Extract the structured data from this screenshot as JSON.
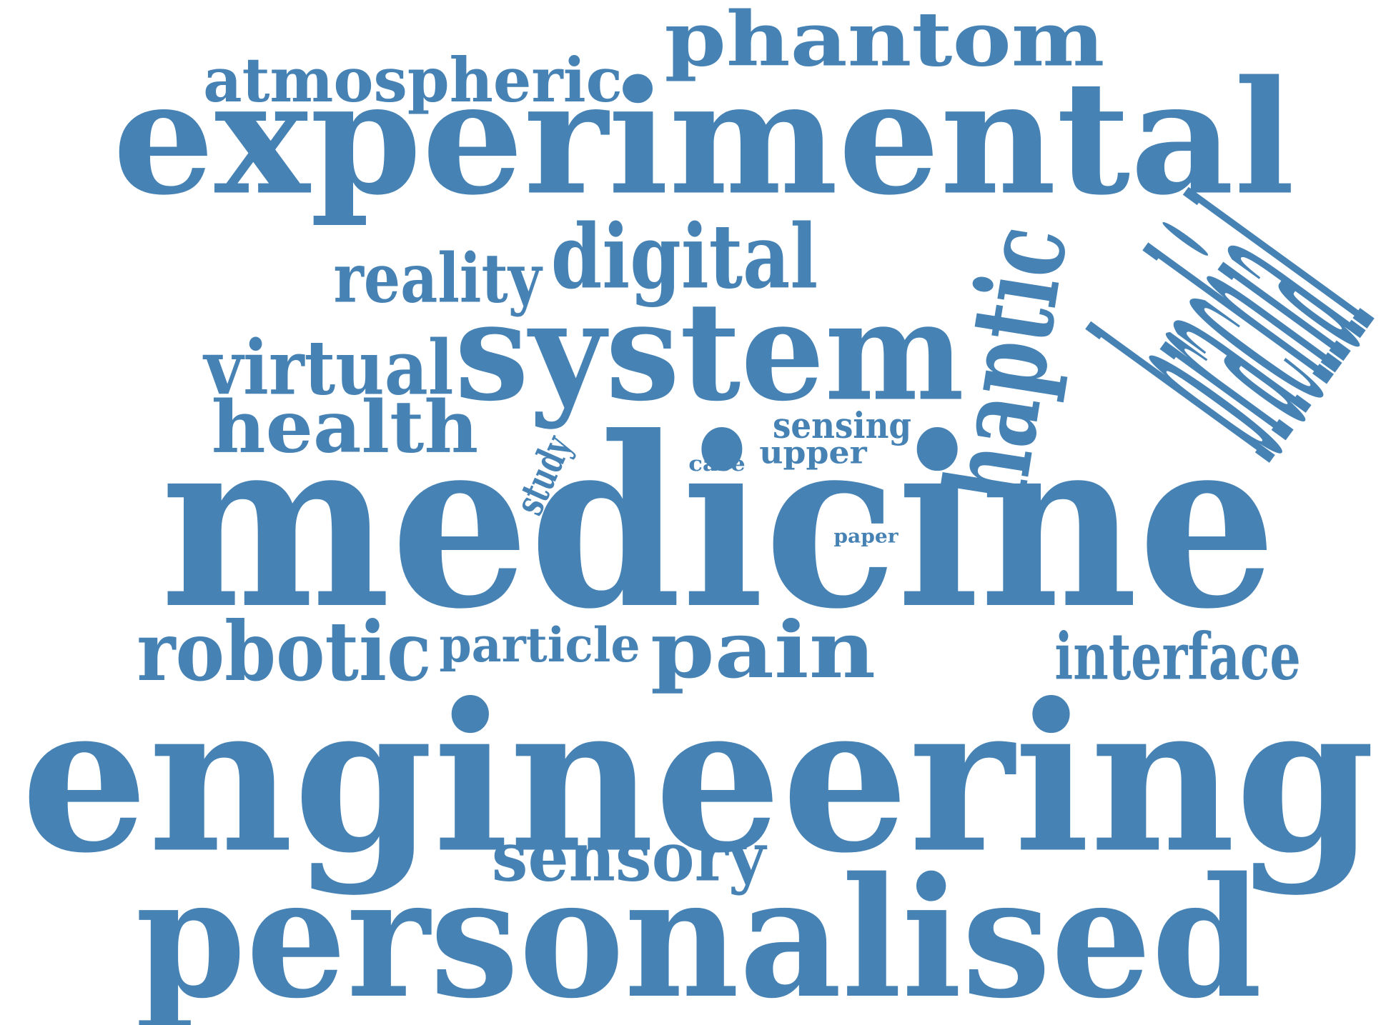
{
  "color": "#4682b4",
  "words": [
    {
      "id": "w-phantom",
      "text": "phantom"
    },
    {
      "id": "w-atmospheric",
      "text": "atmospheric"
    },
    {
      "id": "w-experimental",
      "text": "experimental"
    },
    {
      "id": "w-brachial",
      "text": "brachial"
    },
    {
      "id": "w-reality",
      "text": "reality"
    },
    {
      "id": "w-digital",
      "text": "digital"
    },
    {
      "id": "w-haptic",
      "text": "haptic"
    },
    {
      "id": "w-virtual",
      "text": "virtual"
    },
    {
      "id": "w-system",
      "text": "system"
    },
    {
      "id": "w-health",
      "text": "health"
    },
    {
      "id": "w-sensing",
      "text": "sensing"
    },
    {
      "id": "w-upper",
      "text": "upper"
    },
    {
      "id": "w-case",
      "text": "case"
    },
    {
      "id": "w-study",
      "text": "study"
    },
    {
      "id": "w-medicine",
      "text": "medicine"
    },
    {
      "id": "w-paper",
      "text": "paper"
    },
    {
      "id": "w-robotic",
      "text": "robotic"
    },
    {
      "id": "w-particle",
      "text": "particle"
    },
    {
      "id": "w-pain",
      "text": "pain"
    },
    {
      "id": "w-interface",
      "text": "interface"
    },
    {
      "id": "w-engineering",
      "text": "engineering"
    },
    {
      "id": "w-sensory",
      "text": "sensory"
    },
    {
      "id": "w-personalised",
      "text": "personalised"
    }
  ]
}
